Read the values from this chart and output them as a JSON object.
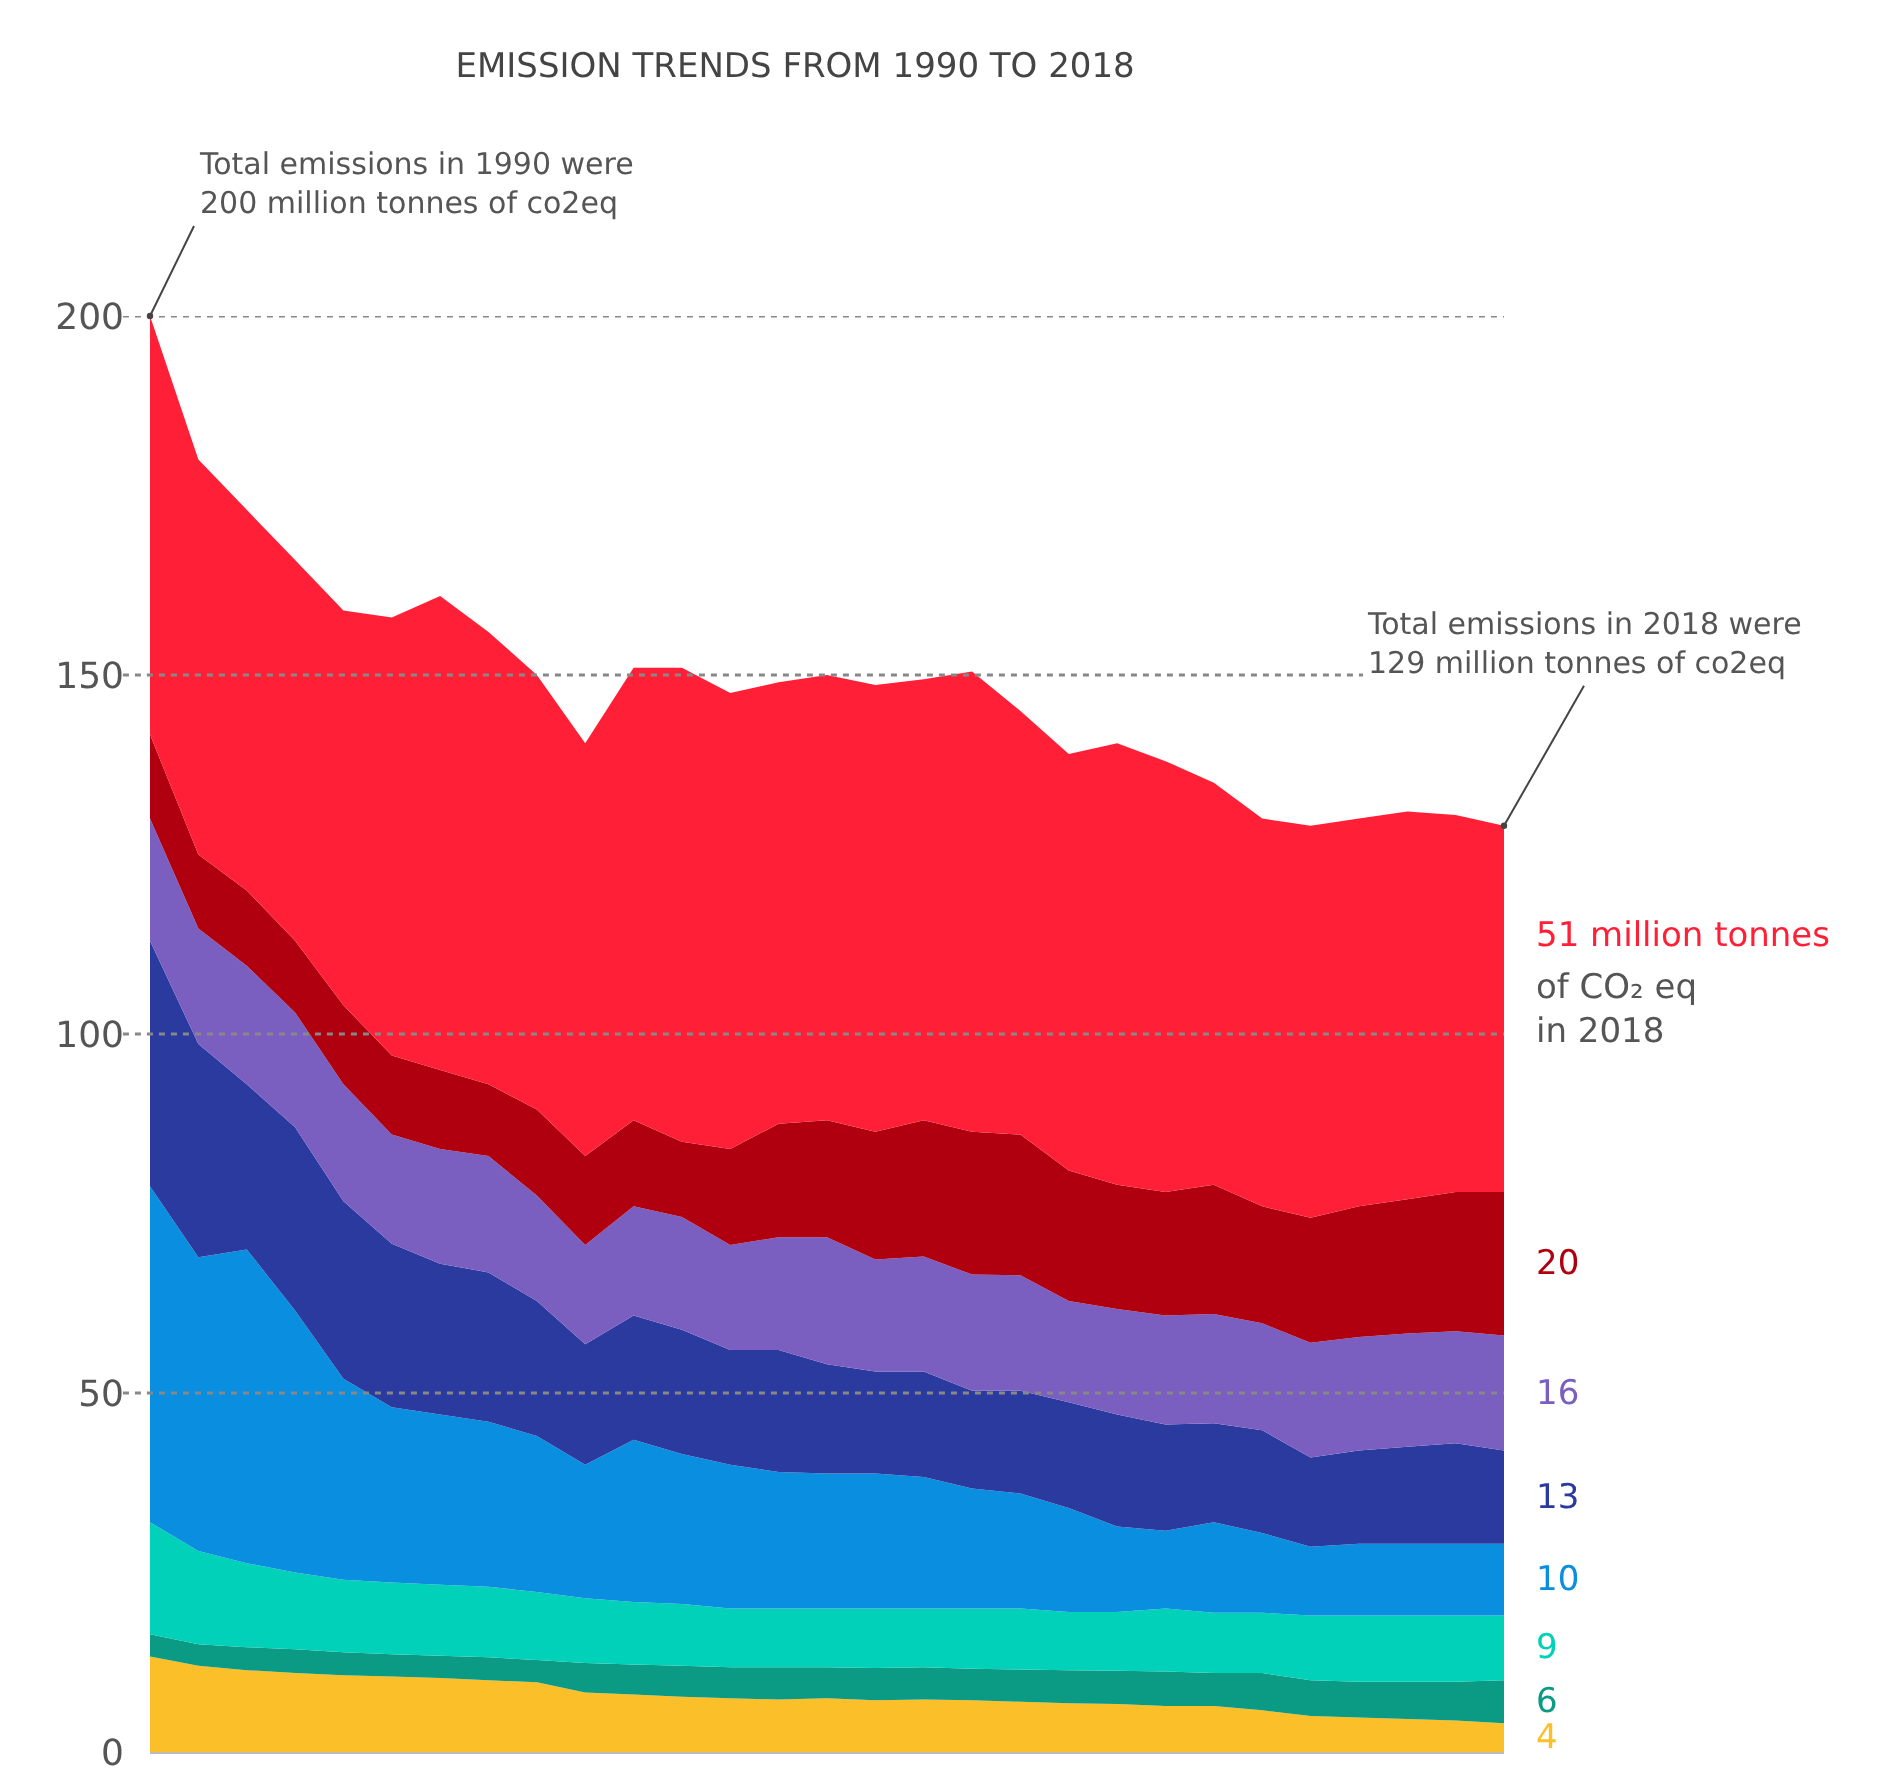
{
  "chart_data": {
    "type": "area",
    "stacked": true,
    "title": "EMISSION TRENDS FROM 1990 TO 2018",
    "categories": [
      null,
      null,
      null,
      null,
      null,
      null,
      null,
      null,
      null,
      null,
      null,
      null,
      null,
      null,
      null,
      null,
      null,
      null,
      null,
      null,
      null,
      null,
      null,
      null,
      null,
      null,
      null,
      null,
      null
    ],
    "series": [
      {
        "color": "#fbbf2a",
        "values": [
          13.3,
          12,
          11.4,
          11,
          10.7,
          10.5,
          10.3,
          10,
          9.7,
          8.3,
          8,
          7.7,
          7.5,
          7.3,
          7.5,
          7.2,
          7.3,
          7.2,
          7,
          6.8,
          6.7,
          6.4,
          6.4,
          5.8,
          5,
          4.8,
          4.6,
          4.4,
          4
        ],
        "value_labels": [
          null,
          null,
          null,
          null,
          null,
          null,
          null,
          null,
          null,
          null,
          null,
          null,
          null,
          null,
          null,
          null,
          null,
          null,
          null,
          null,
          null,
          null,
          null,
          null,
          null,
          null,
          null,
          null,
          "4"
        ]
      },
      {
        "color": "#0b9a84",
        "values": [
          3.1,
          3,
          3.2,
          3.3,
          3.2,
          3.1,
          3.1,
          3.2,
          3.1,
          4.1,
          4.2,
          4.3,
          4.3,
          4.5,
          4.3,
          4.5,
          4.5,
          4.4,
          4.5,
          4.6,
          4.6,
          4.8,
          4.6,
          5.2,
          5,
          5,
          5.2,
          5.4,
          6
        ],
        "value_labels": [
          null,
          null,
          null,
          null,
          null,
          null,
          null,
          null,
          null,
          null,
          null,
          null,
          null,
          null,
          null,
          null,
          null,
          null,
          null,
          null,
          null,
          null,
          null,
          null,
          null,
          null,
          null,
          null,
          "6"
        ]
      },
      {
        "color": "#00d1b8",
        "values": [
          15.6,
          13,
          11.7,
          10.7,
          10.1,
          10,
          9.9,
          9.8,
          9.5,
          9,
          8.7,
          8.6,
          8.2,
          8.2,
          8.2,
          8.3,
          8.2,
          8.4,
          8.5,
          8.1,
          8.2,
          8.8,
          8.4,
          8.4,
          9,
          9.2,
          9.2,
          9.2,
          9
        ],
        "value_labels": [
          null,
          null,
          null,
          null,
          null,
          null,
          null,
          null,
          null,
          null,
          null,
          null,
          null,
          null,
          null,
          null,
          null,
          null,
          null,
          null,
          null,
          null,
          null,
          null,
          null,
          null,
          null,
          null,
          "9"
        ]
      },
      {
        "color": "#0a8ee0",
        "values": [
          46.8,
          40.9,
          43.7,
          36.5,
          28,
          24.4,
          23.7,
          23,
          21.7,
          18.6,
          22.6,
          20.9,
          20,
          19,
          18.8,
          18.8,
          18.3,
          16.7,
          16,
          14.5,
          11.9,
          10.8,
          12.6,
          11.1,
          9.6,
          10,
          10,
          10,
          10
        ],
        "value_labels": [
          null,
          null,
          null,
          null,
          null,
          null,
          null,
          null,
          null,
          null,
          null,
          null,
          null,
          null,
          null,
          null,
          null,
          null,
          null,
          null,
          null,
          null,
          null,
          null,
          null,
          null,
          null,
          null,
          "10"
        ]
      },
      {
        "color": "#2b3a9e",
        "values": [
          34.2,
          29.7,
          23,
          25.5,
          24.7,
          22.8,
          21,
          20.8,
          18.8,
          16.8,
          17.3,
          17.3,
          16,
          17,
          15.2,
          14.2,
          14.7,
          13.6,
          14.3,
          14.7,
          15.6,
          14.8,
          13.8,
          14.3,
          12.4,
          13,
          13.5,
          14,
          13
        ],
        "value_labels": [
          null,
          null,
          null,
          null,
          null,
          null,
          null,
          null,
          null,
          null,
          null,
          null,
          null,
          null,
          null,
          null,
          null,
          null,
          null,
          null,
          null,
          null,
          null,
          null,
          null,
          null,
          null,
          null,
          "13"
        ]
      },
      {
        "color": "#7a5ec0",
        "values": [
          17,
          16.1,
          16.5,
          16,
          16.3,
          15.2,
          16,
          16.2,
          14.7,
          13.8,
          15.2,
          15.7,
          14.6,
          15.7,
          17.7,
          15.6,
          16,
          16.2,
          16.1,
          14.1,
          14.7,
          15.2,
          15.2,
          14.9,
          16,
          15.8,
          15.8,
          15.6,
          16
        ],
        "value_labels": [
          null,
          null,
          null,
          null,
          null,
          null,
          null,
          null,
          null,
          null,
          null,
          null,
          null,
          null,
          null,
          null,
          null,
          null,
          null,
          null,
          null,
          null,
          null,
          null,
          null,
          null,
          null,
          null,
          "16"
        ]
      },
      {
        "color": "#b00010",
        "values": [
          11.7,
          10.3,
          10.5,
          10,
          11,
          11,
          11,
          10,
          12,
          12.4,
          12,
          10.5,
          13.4,
          15.8,
          16.3,
          17.8,
          19,
          19.9,
          19.6,
          18.2,
          17.3,
          17.2,
          18,
          16.3,
          17.4,
          18.2,
          18.7,
          19.4,
          20
        ],
        "value_labels": [
          null,
          null,
          null,
          null,
          null,
          null,
          null,
          null,
          null,
          null,
          null,
          null,
          null,
          null,
          null,
          null,
          null,
          null,
          null,
          null,
          null,
          null,
          null,
          null,
          null,
          null,
          null,
          null,
          "20"
        ]
      },
      {
        "color": "#ff2038",
        "values": [
          58.3,
          55,
          53,
          53,
          55,
          61,
          66,
          63,
          60.5,
          57.5,
          63,
          66,
          63.5,
          61.5,
          62,
          62.2,
          61.4,
          64.1,
          59,
          58,
          61.5,
          60,
          56,
          54,
          54.6,
          54,
          54,
          52.5,
          51
        ],
        "value_labels": [
          null,
          null,
          null,
          null,
          null,
          null,
          null,
          null,
          null,
          null,
          null,
          null,
          null,
          null,
          null,
          null,
          null,
          null,
          null,
          null,
          null,
          null,
          null,
          null,
          null,
          null,
          null,
          null,
          "51 million tonnes"
        ]
      }
    ],
    "ylim": [
      0,
      200
    ],
    "yticks": [
      0,
      50,
      100,
      150,
      200
    ],
    "grid": "y",
    "line_style": "dotted",
    "annotations": [
      "Total emissions in 1990 were 200 million tonnes of co2eq",
      "Total emissions in 2018 were 129 million tonnes of co2eq",
      "of CO₂ eq in 2018"
    ]
  }
}
